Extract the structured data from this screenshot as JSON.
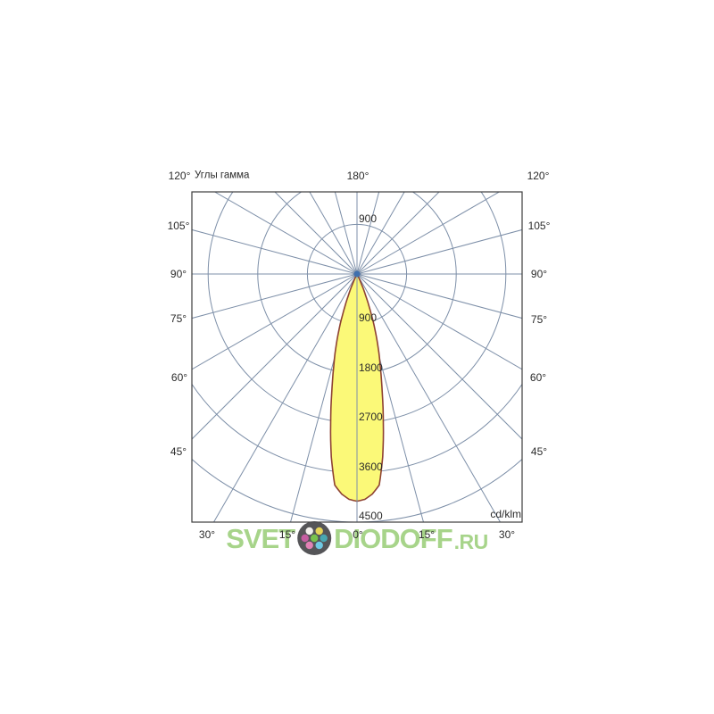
{
  "chart_data": {
    "type": "polar",
    "subtype": "photometric_intensity_diagram",
    "title": "Углы гамма",
    "units_label": "cd/klm",
    "top_label": "180°",
    "side_angle_labels": [
      "120°",
      "105°",
      "90°",
      "75°",
      "60°",
      "45°"
    ],
    "bottom_angle_labels": [
      "30°",
      "15°",
      "0°",
      "15°",
      "30°"
    ],
    "radial_ticks_cd_klm": [
      900,
      1800,
      2700,
      3600,
      4500
    ],
    "radial_max_cd_klm": 4500,
    "angle_grid_step_deg": 15,
    "grid_on": true,
    "grid_color": "#7d8fa8",
    "frame_color": "#3c3c3c",
    "center_dot_color": "#3f6fae",
    "text_color": "#2b2b2b",
    "series": [
      {
        "name": "luminous-intensity-distribution",
        "fill": "#fbf978",
        "stroke": "#8e4232",
        "peak_cd_klm": 4120,
        "gamma_deg": [
          0,
          2,
          4,
          6,
          8,
          10,
          12,
          14,
          16,
          18,
          20,
          22,
          24,
          26,
          28
        ],
        "intensity_cd_klm": [
          4120,
          4090,
          4000,
          3850,
          3350,
          2750,
          2200,
          1750,
          1400,
          1050,
          700,
          420,
          200,
          60,
          0
        ]
      }
    ]
  },
  "watermark": {
    "prefix": "SVET",
    "suffix": "DIODOFF",
    "tld": ".RU",
    "text_color": "#a3d284",
    "logo_circle_color": "#4c4c50",
    "logo_dot_colors": [
      "#f2f0ec",
      "#e4d24f",
      "#c2559d",
      "#72bf44",
      "#3fa3ad",
      "#e07bb0",
      "#68c7e2"
    ]
  }
}
